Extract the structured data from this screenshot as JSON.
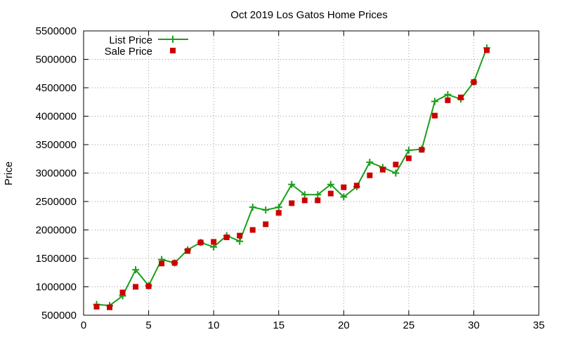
{
  "chart_data": {
    "type": "line",
    "title": "Oct 2019 Los Gatos Home Prices",
    "xlabel": "",
    "ylabel": "Price",
    "xlim": [
      0,
      35
    ],
    "ylim": [
      500000,
      5500000
    ],
    "x_ticks": [
      0,
      5,
      10,
      15,
      20,
      25,
      30,
      35
    ],
    "y_ticks": [
      500000,
      1000000,
      1500000,
      2000000,
      2500000,
      3000000,
      3500000,
      4000000,
      4500000,
      5000000,
      5500000
    ],
    "grid": true,
    "legend_position": "top-left",
    "series": [
      {
        "name": "List Price",
        "style": "line+cross",
        "color": "#1a9e1a",
        "x": [
          1,
          2,
          3,
          4,
          5,
          6,
          7,
          8,
          9,
          10,
          11,
          12,
          13,
          14,
          15,
          16,
          17,
          18,
          19,
          20,
          21,
          22,
          23,
          24,
          25,
          26,
          27,
          28,
          29,
          30,
          31
        ],
        "values": [
          690000,
          670000,
          840000,
          1300000,
          1020000,
          1480000,
          1420000,
          1650000,
          1780000,
          1700000,
          1900000,
          1800000,
          2400000,
          2350000,
          2400000,
          2800000,
          2620000,
          2620000,
          2800000,
          2580000,
          2760000,
          3190000,
          3100000,
          3000000,
          3400000,
          3420000,
          4260000,
          4380000,
          4300000,
          4600000,
          5200000
        ]
      },
      {
        "name": "Sale Price",
        "style": "square",
        "color": "#cc0000",
        "x": [
          1,
          2,
          3,
          4,
          5,
          6,
          7,
          8,
          9,
          10,
          11,
          12,
          13,
          14,
          15,
          16,
          17,
          18,
          19,
          20,
          21,
          22,
          23,
          24,
          25,
          26,
          27,
          28,
          29,
          30,
          31
        ],
        "values": [
          650000,
          640000,
          900000,
          1000000,
          1010000,
          1410000,
          1420000,
          1630000,
          1780000,
          1790000,
          1870000,
          1900000,
          2000000,
          2100000,
          2300000,
          2470000,
          2520000,
          2520000,
          2640000,
          2750000,
          2780000,
          2960000,
          3060000,
          3150000,
          3260000,
          3410000,
          4010000,
          4280000,
          4330000,
          4600000,
          5160000
        ]
      }
    ]
  }
}
